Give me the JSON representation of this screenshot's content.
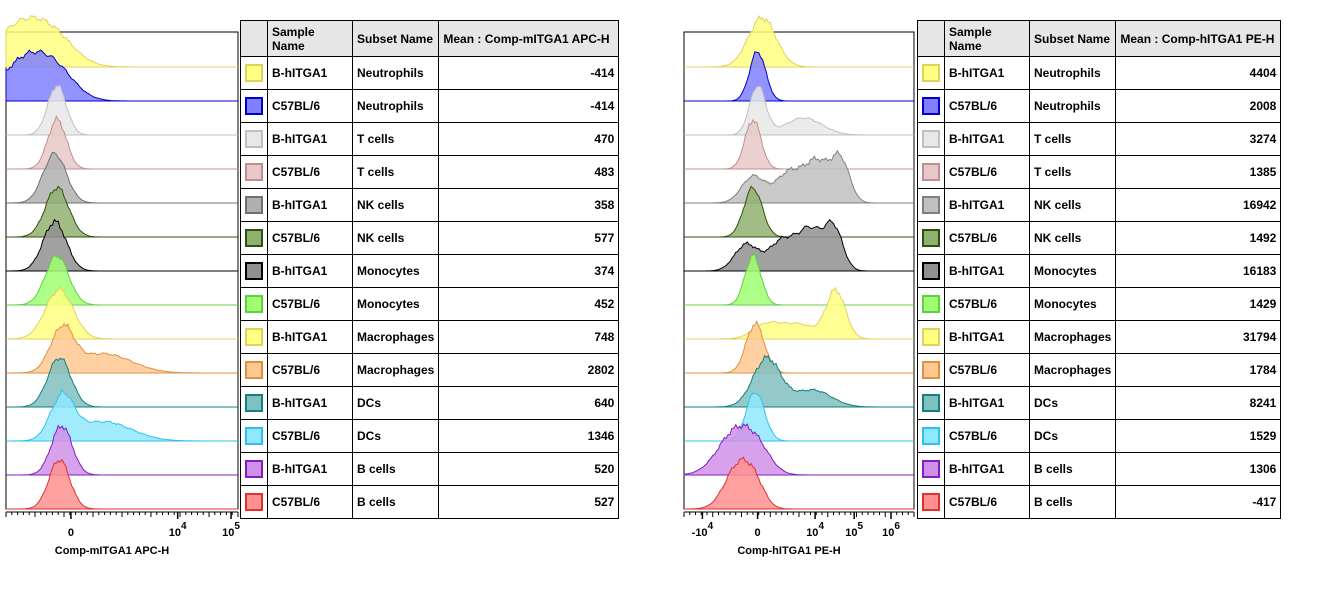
{
  "chart_data": [
    {
      "type": "table",
      "title": "",
      "xlabel": "Comp-mITGA1 APC-H",
      "ylabel": "",
      "x_ticks": [
        "0",
        "10^4",
        "10^5"
      ],
      "legend_headers": [
        "Sample Name",
        "Subset Name",
        "Mean : Comp-mITGA1 APC-H"
      ],
      "rows": [
        {
          "sample": "B-hITGA1",
          "subset": "Neutrophils",
          "mean": "-414",
          "color": "#ffff80",
          "stroke": "#e0d060",
          "peak": 0.08,
          "width": 0.12,
          "shape": "broad"
        },
        {
          "sample": "C57BL/6",
          "subset": "Neutrophils",
          "mean": "-414",
          "color": "#8080ff",
          "stroke": "#0000cc",
          "peak": 0.1,
          "width": 0.11,
          "shape": "broad"
        },
        {
          "sample": "B-hITGA1",
          "subset": "T cells",
          "mean": "470",
          "color": "#e8e8e8",
          "stroke": "#c0c0c0",
          "peak": 0.22,
          "width": 0.04,
          "shape": "narrow"
        },
        {
          "sample": "C57BL/6",
          "subset": "T cells",
          "mean": "483",
          "color": "#e8c8c8",
          "stroke": "#c09090",
          "peak": 0.22,
          "width": 0.04,
          "shape": "narrow"
        },
        {
          "sample": "B-hITGA1",
          "subset": "NK cells",
          "mean": "358",
          "color": "#b0b0b0",
          "stroke": "#707070",
          "peak": 0.21,
          "width": 0.05,
          "shape": "narrow"
        },
        {
          "sample": "C57BL/6",
          "subset": "NK cells",
          "mean": "577",
          "color": "#90b070",
          "stroke": "#305010",
          "peak": 0.22,
          "width": 0.05,
          "shape": "narrow"
        },
        {
          "sample": "B-hITGA1",
          "subset": "Monocytes",
          "mean": "374",
          "color": "#909090",
          "stroke": "#000000",
          "peak": 0.21,
          "width": 0.05,
          "shape": "narrow"
        },
        {
          "sample": "C57BL/6",
          "subset": "Monocytes",
          "mean": "452",
          "color": "#a0ff70",
          "stroke": "#60d040",
          "peak": 0.22,
          "width": 0.05,
          "shape": "narrow"
        },
        {
          "sample": "B-hITGA1",
          "subset": "Macrophages",
          "mean": "748",
          "color": "#ffff80",
          "stroke": "#e0d060",
          "peak": 0.23,
          "width": 0.06,
          "shape": "narrow"
        },
        {
          "sample": "C57BL/6",
          "subset": "Macrophages",
          "mean": "2802",
          "color": "#ffc890",
          "stroke": "#e09040",
          "peak": 0.24,
          "width": 0.05,
          "shape": "tail"
        },
        {
          "sample": "B-hITGA1",
          "subset": "DCs",
          "mean": "640",
          "color": "#80c0c0",
          "stroke": "#108080",
          "peak": 0.23,
          "width": 0.05,
          "shape": "narrow"
        },
        {
          "sample": "C57BL/6",
          "subset": "DCs",
          "mean": "1346",
          "color": "#90e8ff",
          "stroke": "#30c0f0",
          "peak": 0.24,
          "width": 0.05,
          "shape": "tail"
        },
        {
          "sample": "B-hITGA1",
          "subset": "B cells",
          "mean": "520",
          "color": "#d090e8",
          "stroke": "#8020c0",
          "peak": 0.24,
          "width": 0.045,
          "shape": "narrow"
        },
        {
          "sample": "C57BL/6",
          "subset": "B cells",
          "mean": "527",
          "color": "#ff9090",
          "stroke": "#e03030",
          "peak": 0.23,
          "width": 0.045,
          "shape": "narrow"
        }
      ]
    },
    {
      "type": "table",
      "title": "",
      "xlabel": "Comp-hITGA1 PE-H",
      "ylabel": "",
      "x_ticks": [
        "-10^4",
        "0",
        "10^4",
        "10^5",
        "10^6"
      ],
      "legend_headers": [
        "Sample Name",
        "Subset Name",
        "Mean : Comp-hITGA1 PE-H"
      ],
      "rows": [
        {
          "sample": "B-hITGA1",
          "subset": "Neutrophils",
          "mean": "4404",
          "color": "#ffff80",
          "stroke": "#e0d060",
          "peak": 0.34,
          "width": 0.06,
          "shape": "narrow"
        },
        {
          "sample": "C57BL/6",
          "subset": "Neutrophils",
          "mean": "2008",
          "color": "#8080ff",
          "stroke": "#0000cc",
          "peak": 0.32,
          "width": 0.035,
          "shape": "narrow"
        },
        {
          "sample": "B-hITGA1",
          "subset": "T cells",
          "mean": "3274",
          "color": "#e8e8e8",
          "stroke": "#c0c0c0",
          "peak": 0.32,
          "width": 0.035,
          "shape": "tailright"
        },
        {
          "sample": "C57BL/6",
          "subset": "T cells",
          "mean": "1385",
          "color": "#e8c8c8",
          "stroke": "#c09090",
          "peak": 0.3,
          "width": 0.035,
          "shape": "narrow"
        },
        {
          "sample": "B-hITGA1",
          "subset": "NK cells",
          "mean": "16942",
          "color": "#c0c0c0",
          "stroke": "#808080",
          "peak": 0.58,
          "width": 0.14,
          "shape": "bimodal"
        },
        {
          "sample": "C57BL/6",
          "subset": "NK cells",
          "mean": "1492",
          "color": "#90b070",
          "stroke": "#305010",
          "peak": 0.3,
          "width": 0.04,
          "shape": "narrow"
        },
        {
          "sample": "B-hITGA1",
          "subset": "Monocytes",
          "mean": "16183",
          "color": "#909090",
          "stroke": "#000000",
          "peak": 0.55,
          "width": 0.16,
          "shape": "bimodal"
        },
        {
          "sample": "C57BL/6",
          "subset": "Monocytes",
          "mean": "1429",
          "color": "#a0ff70",
          "stroke": "#60d040",
          "peak": 0.3,
          "width": 0.035,
          "shape": "narrow"
        },
        {
          "sample": "B-hITGA1",
          "subset": "Macrophages",
          "mean": "31794",
          "color": "#ffff80",
          "stroke": "#e0d060",
          "peak": 0.66,
          "width": 0.06,
          "shape": "rightpeak"
        },
        {
          "sample": "C57BL/6",
          "subset": "Macrophages",
          "mean": "1784",
          "color": "#ffc890",
          "stroke": "#e09040",
          "peak": 0.31,
          "width": 0.04,
          "shape": "narrow"
        },
        {
          "sample": "B-hITGA1",
          "subset": "DCs",
          "mean": "8241",
          "color": "#80c0c0",
          "stroke": "#108080",
          "peak": 0.36,
          "width": 0.06,
          "shape": "tailright"
        },
        {
          "sample": "C57BL/6",
          "subset": "DCs",
          "mean": "1529",
          "color": "#90e8ff",
          "stroke": "#30c0f0",
          "peak": 0.31,
          "width": 0.04,
          "shape": "narrow"
        },
        {
          "sample": "B-hITGA1",
          "subset": "B cells",
          "mean": "1306",
          "color": "#d090e8",
          "stroke": "#8020c0",
          "peak": 0.23,
          "width": 0.08,
          "shape": "broad"
        },
        {
          "sample": "C57BL/6",
          "subset": "B cells",
          "mean": "-417",
          "color": "#ff9090",
          "stroke": "#e03030",
          "peak": 0.24,
          "width": 0.06,
          "shape": "broad"
        }
      ]
    }
  ]
}
